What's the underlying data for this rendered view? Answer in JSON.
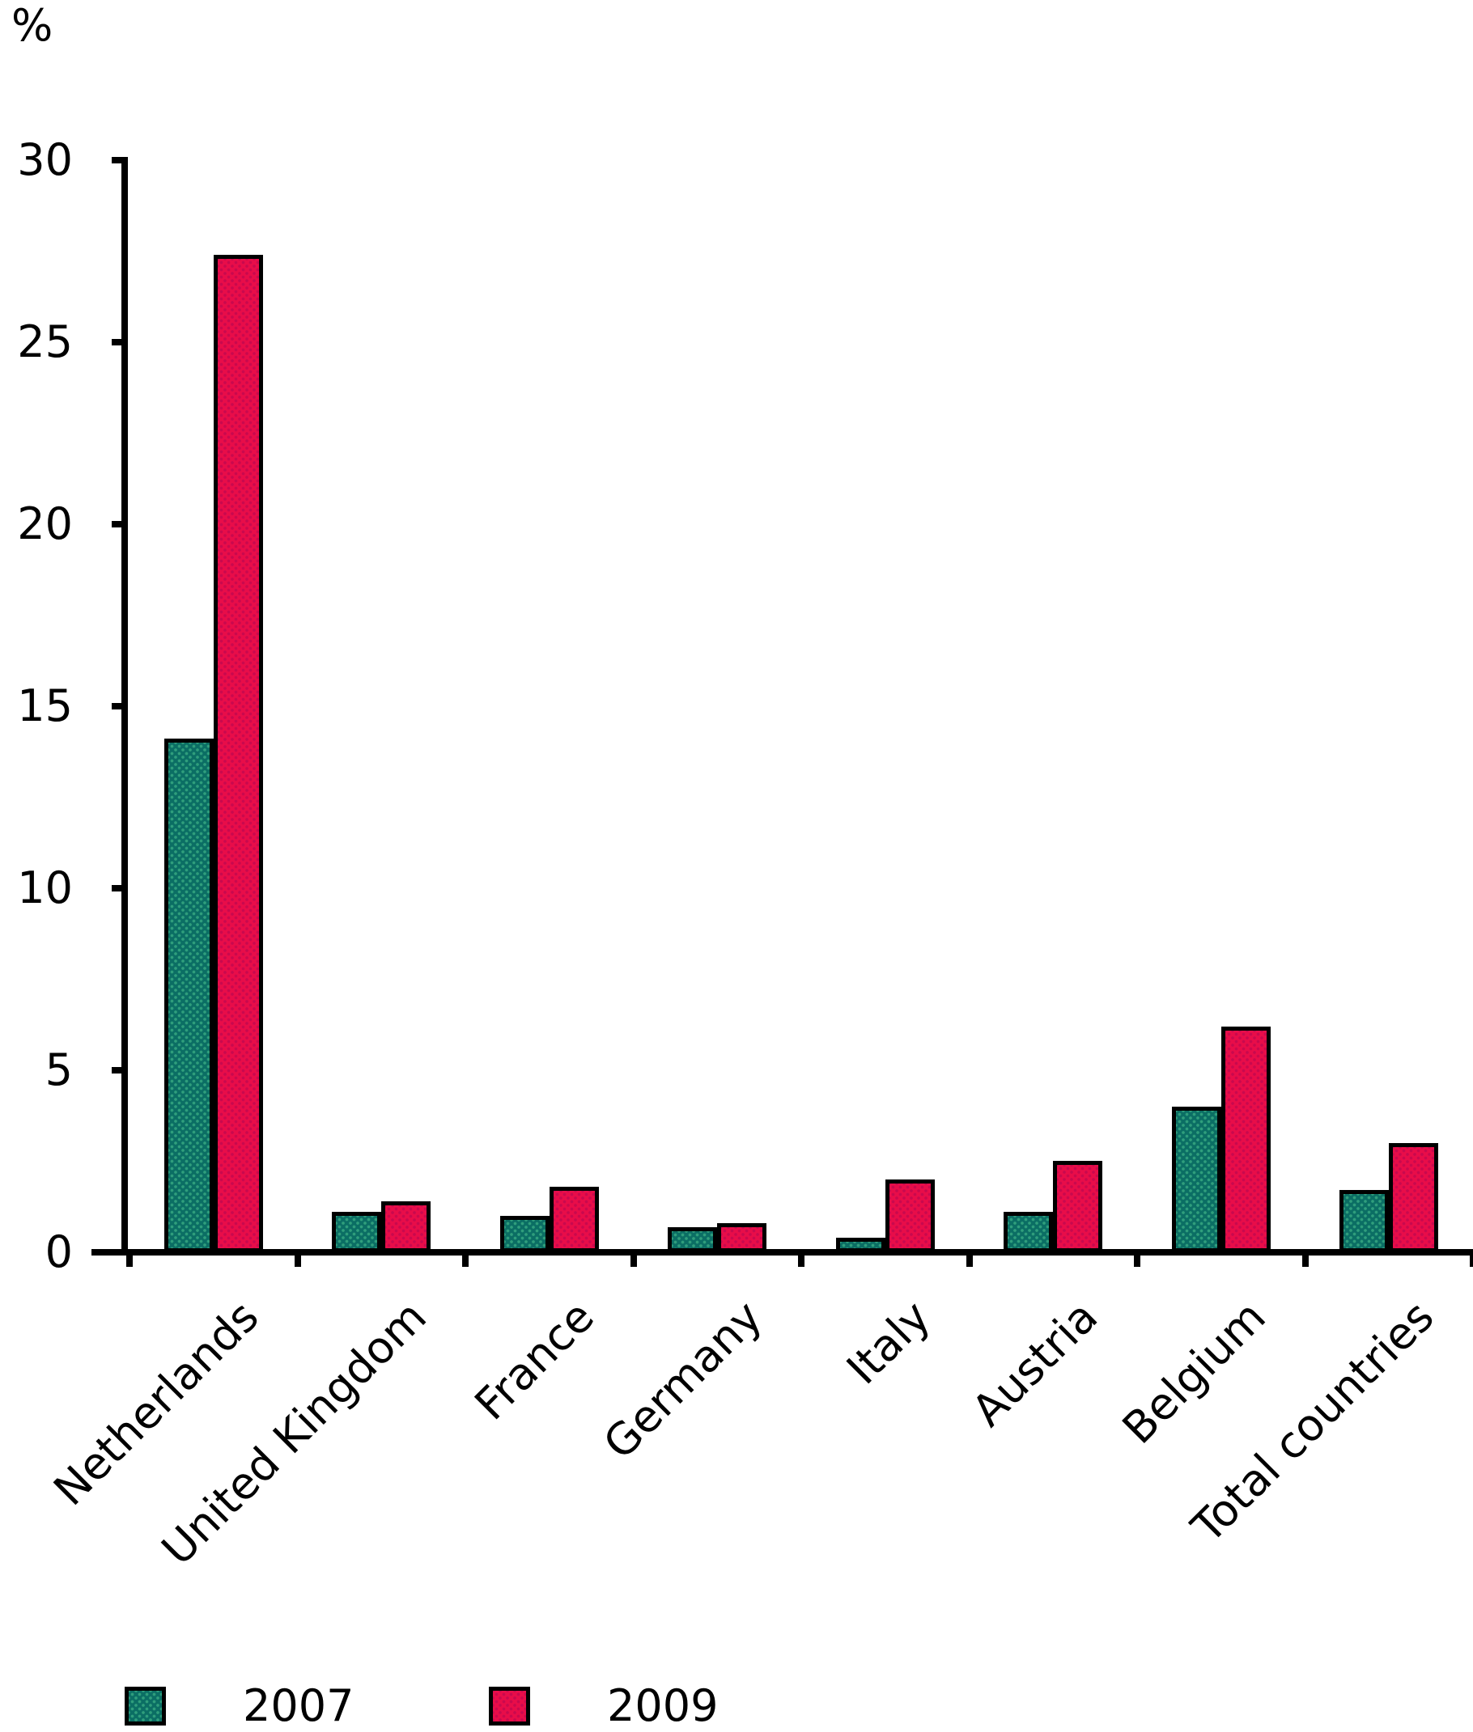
{
  "chart_data": {
    "type": "bar",
    "title": "",
    "ylabel": "%",
    "xlabel": "",
    "categories": [
      "Netherlands",
      "United Kingdom",
      "France",
      "Germany",
      "Italy",
      "Austria",
      "Belgium",
      "Total countries"
    ],
    "series": [
      {
        "name": "2007",
        "color": "#0B6E64",
        "dot_color": "#2F9E7C",
        "values": [
          14.1,
          1.1,
          1.0,
          0.7,
          0.4,
          1.1,
          4.0,
          1.7
        ]
      },
      {
        "name": "2009",
        "color": "#E80D49",
        "dot_color": "#C9094E",
        "values": [
          27.4,
          1.4,
          1.8,
          0.8,
          2.0,
          2.5,
          6.2,
          3.0
        ]
      }
    ],
    "y_ticks": [
      0,
      5,
      10,
      15,
      20,
      25,
      30
    ],
    "ylim": [
      0,
      30
    ],
    "grid": false,
    "legend_position": "bottom",
    "axis_color": "#000000",
    "bar_border_color": "#000000"
  }
}
